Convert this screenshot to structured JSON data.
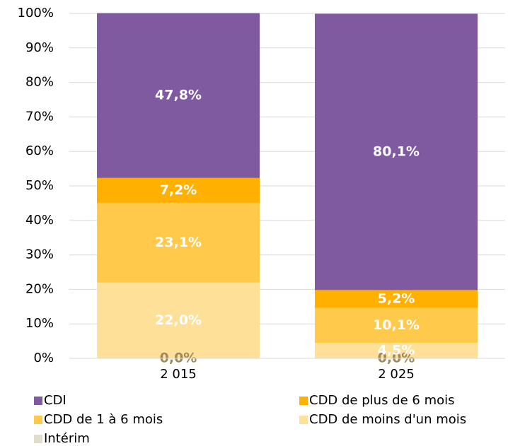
{
  "chart_data": {
    "type": "stacked_bar",
    "categories": [
      "2 015",
      "2 025"
    ],
    "series": [
      {
        "name": "Intérim",
        "color": "#e2dccb",
        "label_color": "#9e8a5c",
        "values": [
          0.0,
          0.0
        ],
        "value_labels": [
          "0,0%",
          "0,0%"
        ]
      },
      {
        "name": "CDD de moins d'un mois",
        "color": "#ffe099",
        "label_color": "#ffffff",
        "values": [
          22.0,
          4.5
        ],
        "value_labels": [
          "22,0%",
          "4,5%"
        ]
      },
      {
        "name": "CDD de 1 à 6 mois",
        "color": "#ffc94b",
        "label_color": "#ffffff",
        "values": [
          23.1,
          10.1
        ],
        "value_labels": [
          "23,1%",
          "10,1%"
        ]
      },
      {
        "name": "CDD de plus de 6 mois",
        "color": "#ffb000",
        "label_color": "#ffffff",
        "values": [
          7.2,
          5.2
        ],
        "value_labels": [
          "7,2%",
          "5,2%"
        ]
      },
      {
        "name": "CDI",
        "color": "#7f5aa0",
        "label_color": "#ffffff",
        "values": [
          47.8,
          80.1
        ],
        "value_labels": [
          "47,8%",
          "80,1%"
        ]
      }
    ],
    "ylim": [
      0,
      100
    ],
    "yticks": [
      {
        "value": 0,
        "label": "0%"
      },
      {
        "value": 10,
        "label": "10%"
      },
      {
        "value": 20,
        "label": "20%"
      },
      {
        "value": 30,
        "label": "30%"
      },
      {
        "value": 40,
        "label": "40%"
      },
      {
        "value": 50,
        "label": "50%"
      },
      {
        "value": 60,
        "label": "60%"
      },
      {
        "value": 70,
        "label": "70%"
      },
      {
        "value": 80,
        "label": "80%"
      },
      {
        "value": 90,
        "label": "90%"
      },
      {
        "value": 100,
        "label": "100%"
      }
    ],
    "grid": true
  }
}
